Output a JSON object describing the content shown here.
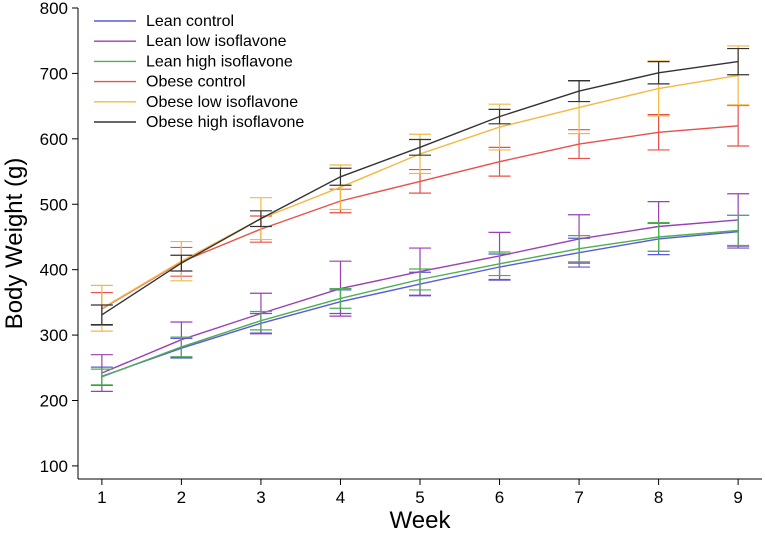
{
  "chart_data": {
    "type": "line",
    "title": "",
    "xlabel": "Week",
    "ylabel": "Body Weight (g)",
    "x": [
      1,
      2,
      3,
      4,
      5,
      6,
      7,
      8,
      9
    ],
    "xlim": [
      0.7,
      9.3
    ],
    "ylim": [
      80,
      800
    ],
    "yticks": [
      100,
      200,
      300,
      400,
      500,
      600,
      700,
      800
    ],
    "grid": false,
    "legend_position": "top-left",
    "series": [
      {
        "name": "Lean control",
        "color": "#5a5adc",
        "values": [
          237,
          280,
          318,
          351,
          378,
          404,
          426,
          447,
          458
        ],
        "err": [
          14,
          15,
          15,
          18,
          18,
          20,
          22,
          24,
          25
        ]
      },
      {
        "name": "Lean low isoflavone",
        "color": "#9a3fb5",
        "values": [
          242,
          293,
          333,
          371,
          397,
          421,
          447,
          466,
          476
        ],
        "err": [
          28,
          27,
          31,
          42,
          36,
          36,
          37,
          38,
          40
        ]
      },
      {
        "name": "Lean high isoflavone",
        "color": "#4caf50",
        "values": [
          236,
          282,
          322,
          356,
          385,
          409,
          432,
          450,
          460
        ],
        "err": [
          12,
          15,
          14,
          15,
          16,
          18,
          20,
          22,
          23
        ]
      },
      {
        "name": "Obese control",
        "color": "#e8504a",
        "values": [
          340,
          412,
          462,
          505,
          535,
          565,
          592,
          610,
          620
        ],
        "err": [
          25,
          22,
          20,
          18,
          18,
          22,
          22,
          27,
          31
        ]
      },
      {
        "name": "Obese low isoflavone",
        "color": "#f3b942",
        "values": [
          341,
          413,
          478,
          526,
          577,
          618,
          648,
          677,
          697
        ],
        "err": [
          35,
          30,
          32,
          34,
          30,
          35,
          40,
          42,
          45
        ]
      },
      {
        "name": "Obese high isoflavone",
        "color": "#333333",
        "values": [
          331,
          410,
          478,
          542,
          587,
          634,
          673,
          701,
          718
        ],
        "err": [
          15,
          12,
          12,
          13,
          12,
          11,
          16,
          17,
          20
        ]
      }
    ]
  }
}
